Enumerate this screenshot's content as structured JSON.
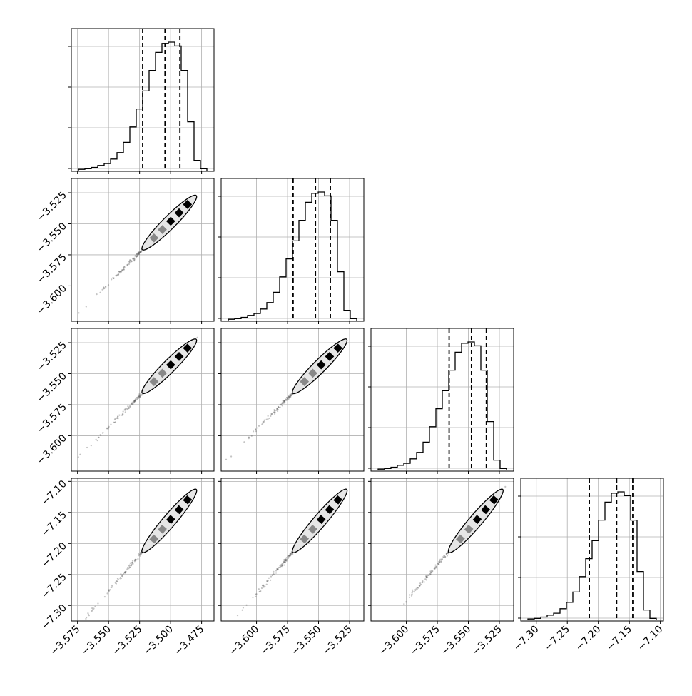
{
  "chart_data": {
    "type": "corner",
    "title": "",
    "params": [
      {
        "range": [
          -3.58,
          -3.465
        ],
        "ticks": [
          -3.575,
          -3.55,
          -3.525,
          -3.5,
          -3.475
        ],
        "tick_labels": [
          "−3.575",
          "−3.550",
          "−3.525",
          "−3.500",
          "−3.475"
        ],
        "quantiles": [
          -3.5225,
          -3.5045,
          -3.4925
        ]
      },
      {
        "range": [
          -3.6285,
          -3.5135
        ],
        "ticks": [
          -3.6,
          -3.575,
          -3.55,
          -3.525
        ],
        "tick_labels": [
          "−3.600",
          "−3.575",
          "−3.550",
          "−3.525"
        ],
        "quantiles": [
          -3.5705,
          -3.5525,
          -3.5405
        ]
      },
      {
        "range": [
          -3.6285,
          -3.5135
        ],
        "ticks": [
          -3.6,
          -3.575,
          -3.55,
          -3.525
        ],
        "tick_labels": [
          "−3.600",
          "−3.575",
          "−3.550",
          "−3.525"
        ],
        "quantiles": [
          -3.5655,
          -3.5475,
          -3.5355
        ]
      },
      {
        "range": [
          -7.325,
          -7.095
        ],
        "ticks": [
          -7.3,
          -7.25,
          -7.2,
          -7.15,
          -7.1
        ],
        "tick_labels": [
          "−7.30",
          "−7.25",
          "−7.20",
          "−7.15",
          "−7.10"
        ],
        "quantiles": [
          -7.2145,
          -7.1705,
          -7.1445
        ]
      }
    ],
    "histogram_heights": [
      0.01,
      0.015,
      0.025,
      0.04,
      0.055,
      0.09,
      0.14,
      0.22,
      0.34,
      0.48,
      0.62,
      0.78,
      0.92,
      0.99,
      1.0,
      0.97,
      0.78,
      0.38,
      0.08,
      0.015
    ],
    "grid": true,
    "legend": "none"
  }
}
